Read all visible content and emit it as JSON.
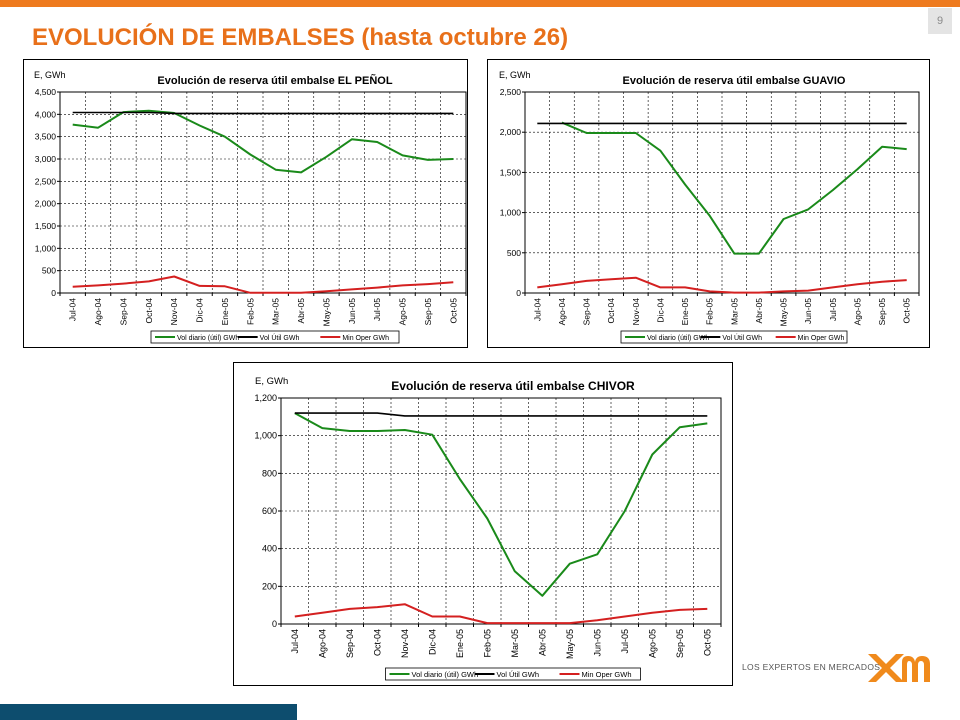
{
  "slide": {
    "title": "EVOLUCIÓN DE EMBALSES (hasta octubre 26)",
    "page_number": "9",
    "logo_text": "LOS EXPERTOS EN MERCADOS",
    "accent_color": "#ee7a1e",
    "footer_color": "#0d4d6e"
  },
  "chart_data": [
    {
      "type": "line",
      "title": "Evolución de reserva útil embalse EL PEÑOL",
      "ylabel": "E, GWh",
      "ylim": [
        0,
        4500
      ],
      "yticks": [
        0,
        500,
        1000,
        1500,
        2000,
        2500,
        3000,
        3500,
        4000,
        4500
      ],
      "ytick_labels": [
        "0",
        "500",
        "1,000",
        "1,500",
        "2,000",
        "2,500",
        "3,000",
        "3,500",
        "4,000",
        "4,500"
      ],
      "categories": [
        "Jul-04",
        "Ago-04",
        "Sep-04",
        "Oct-04",
        "Nov-04",
        "Dic-04",
        "Ene-05",
        "Feb-05",
        "Mar-05",
        "Abr-05",
        "May-05",
        "Jun-05",
        "Jul-05",
        "Ago-05",
        "Sep-05",
        "Oct-05"
      ],
      "grid": true,
      "legend_position": "bottom",
      "series": [
        {
          "name": "Vol diario (útil) GWh",
          "color": "#1a8a1a",
          "values": [
            3770,
            3700,
            4050,
            4080,
            4030,
            3750,
            3500,
            3100,
            2760,
            2700,
            3050,
            3440,
            3380,
            3080,
            2980,
            3000
          ]
        },
        {
          "name": "Vol Útil GWh",
          "color": "#000000",
          "values": [
            4040,
            4040,
            4040,
            4040,
            4020,
            4020,
            4020,
            4020,
            4020,
            4020,
            4020,
            4020,
            4020,
            4020,
            4020,
            4020
          ]
        },
        {
          "name": "Min Oper GWh",
          "color": "#d42020",
          "values": [
            140,
            170,
            210,
            260,
            370,
            160,
            150,
            5,
            5,
            5,
            40,
            80,
            120,
            170,
            200,
            240
          ]
        }
      ]
    },
    {
      "type": "line",
      "title": "Evolución de reserva útil embalse GUAVIO",
      "ylabel": "E, GWh",
      "ylim": [
        0,
        2500
      ],
      "yticks": [
        0,
        500,
        1000,
        1500,
        2000,
        2500
      ],
      "ytick_labels": [
        "0",
        "500",
        "1,000",
        "1,500",
        "2,000",
        "2,500"
      ],
      "categories": [
        "Jul-04",
        "Ago-04",
        "Sep-04",
        "Oct-04",
        "Nov-04",
        "Dic-04",
        "Ene-05",
        "Feb-05",
        "Mar-05",
        "Abr-05",
        "May-05",
        "Jun-05",
        "Jul-05",
        "Ago-05",
        "Sep-05",
        "Oct-05"
      ],
      "grid": true,
      "legend_position": "bottom",
      "series": [
        {
          "name": "Vol diario (útil) GWh",
          "color": "#1a8a1a",
          "values": [
            null,
            2120,
            1990,
            1990,
            1990,
            1770,
            1350,
            960,
            490,
            490,
            920,
            1040,
            1280,
            1540,
            1820,
            1790
          ]
        },
        {
          "name": "Vol Útil GWh",
          "color": "#000000",
          "values": [
            2110,
            2110,
            2110,
            2110,
            2110,
            2110,
            2110,
            2110,
            2110,
            2110,
            2110,
            2110,
            2110,
            2110,
            2110,
            2110
          ]
        },
        {
          "name": "Min Oper GWh",
          "color": "#d42020",
          "values": [
            70,
            110,
            150,
            170,
            190,
            70,
            70,
            20,
            5,
            5,
            20,
            30,
            70,
            110,
            140,
            160
          ]
        }
      ]
    },
    {
      "type": "line",
      "title": "Evolución de reserva útil embalse CHIVOR",
      "ylabel": "E, GWh",
      "ylim": [
        0,
        1200
      ],
      "yticks": [
        0,
        200,
        400,
        600,
        800,
        1000,
        1200
      ],
      "ytick_labels": [
        "0",
        "200",
        "400",
        "600",
        "800",
        "1,000",
        "1,200"
      ],
      "categories": [
        "Jul-04",
        "Ago-04",
        "Sep-04",
        "Oct-04",
        "Nov-04",
        "Dic-04",
        "Ene-05",
        "Feb-05",
        "Mar-05",
        "Abr-05",
        "May-05",
        "Jun-05",
        "Jul-05",
        "Ago-05",
        "Sep-05",
        "Oct-05"
      ],
      "grid": true,
      "legend_position": "bottom",
      "series": [
        {
          "name": "Vol diario (útil) GWh",
          "color": "#1a8a1a",
          "values": [
            1120,
            1040,
            1025,
            1025,
            1030,
            1005,
            770,
            560,
            280,
            150,
            320,
            370,
            600,
            900,
            1045,
            1065
          ]
        },
        {
          "name": "Vol Útil GWh",
          "color": "#000000",
          "values": [
            1120,
            1120,
            1120,
            1120,
            1105,
            1105,
            1105,
            1105,
            1105,
            1105,
            1105,
            1105,
            1105,
            1105,
            1105,
            1105
          ]
        },
        {
          "name": "Min Oper GWh",
          "color": "#d42020",
          "values": [
            40,
            60,
            80,
            90,
            105,
            40,
            40,
            5,
            5,
            5,
            5,
            20,
            40,
            60,
            75,
            80
          ]
        }
      ]
    }
  ]
}
